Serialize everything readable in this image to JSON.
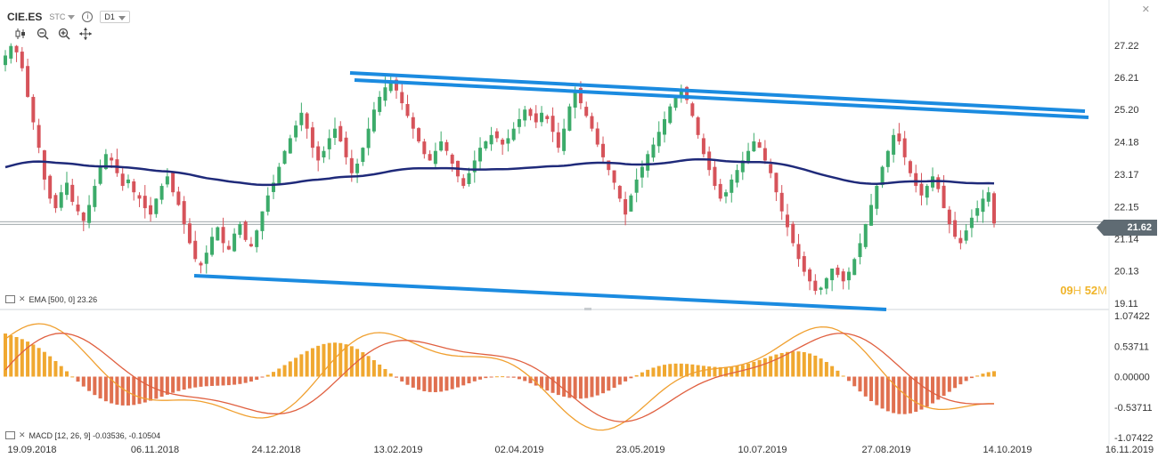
{
  "header": {
    "symbol": "CIE.ES",
    "source": "STC",
    "info_icon": "info-icon",
    "timeframe": "D1"
  },
  "toolbar": {
    "icons": [
      "candlestick-type-icon",
      "zoom-out-icon",
      "zoom-in-icon",
      "crosshair-icon"
    ]
  },
  "window": {
    "close_glyph": "✕"
  },
  "ema_label": "EMA [500, 0] 23.26",
  "macd_label": "MACD [12, 26, 9] -0.03536, -0.10504",
  "timer": {
    "hours": "09",
    "h": "H",
    "minutes": "52",
    "m": "M"
  },
  "current_price": "21.62",
  "colors": {
    "up": "#3cab6a",
    "down": "#d6535a",
    "ema": "#1f2a7a",
    "channel": "#1b8be0",
    "hist_up": "#f0a830",
    "hist_down": "#e07050",
    "macd_line": "#f0a030",
    "signal_line": "#e06040",
    "price_tag_bg": "#5f6b73"
  },
  "chart_data": [
    {
      "type": "candlestick",
      "title": "CIE.ES",
      "y_ticks": [
        "27.22",
        "26.21",
        "25.20",
        "24.18",
        "23.17",
        "22.15",
        "21.14",
        "20.13",
        "19.11"
      ],
      "ylim": [
        19.11,
        27.22
      ],
      "x_ticks": [
        "19.09.2018",
        "06.11.2018",
        "24.12.2018",
        "13.02.2019",
        "02.04.2019",
        "23.05.2019",
        "10.07.2019",
        "27.08.2019",
        "14.10.2019",
        "16.11.2019"
      ],
      "last_price": 21.62,
      "ema": {
        "period": 500,
        "value": 23.26
      },
      "candles_close": [
        26.9,
        27.2,
        27.0,
        26.5,
        25.6,
        24.8,
        24.0,
        23.0,
        22.4,
        22.1,
        22.6,
        22.9,
        22.3,
        22.0,
        21.7,
        22.2,
        22.8,
        23.4,
        23.8,
        23.6,
        23.2,
        22.8,
        23.0,
        22.6,
        22.4,
        22.1,
        21.9,
        22.4,
        22.8,
        23.1,
        22.6,
        22.2,
        21.6,
        21.0,
        20.5,
        20.3,
        20.7,
        21.2,
        21.5,
        21.0,
        20.8,
        21.3,
        21.6,
        21.1,
        20.9,
        21.4,
        22.0,
        22.5,
        22.9,
        23.4,
        23.9,
        24.3,
        24.7,
        25.1,
        24.6,
        24.0,
        23.6,
        23.9,
        24.3,
        24.6,
        24.2,
        23.7,
        23.2,
        23.5,
        24.0,
        24.6,
        25.2,
        25.6,
        25.9,
        26.1,
        25.8,
        25.4,
        25.0,
        24.6,
        24.2,
        23.8,
        23.6,
        23.9,
        24.2,
        23.9,
        23.5,
        23.1,
        22.8,
        23.2,
        23.6,
        24.0,
        24.2,
        24.4,
        24.3,
        24.1,
        24.3,
        24.6,
        24.9,
        25.2,
        25.0,
        24.8,
        25.1,
        24.9,
        24.5,
        24.0,
        24.6,
        25.3,
        25.8,
        25.4,
        25.0,
        24.6,
        24.1,
        23.7,
        23.3,
        22.9,
        22.4,
        21.9,
        22.5,
        23.0,
        23.4,
        23.8,
        24.1,
        24.5,
        24.9,
        25.3,
        25.6,
        25.8,
        25.5,
        25.0,
        24.4,
        23.8,
        23.3,
        22.8,
        22.4,
        22.6,
        23.0,
        23.3,
        23.6,
        23.9,
        24.2,
        24.0,
        23.6,
        23.2,
        22.6,
        22.0,
        21.5,
        21.0,
        20.5,
        20.1,
        19.8,
        19.5,
        19.6,
        19.9,
        20.2,
        20.0,
        19.8,
        20.1,
        20.5,
        21.0,
        21.6,
        22.2,
        22.8,
        23.4,
        23.9,
        24.4,
        24.2,
        23.7,
        23.2,
        22.8,
        22.5,
        22.8,
        23.1,
        22.7,
        22.1,
        21.6,
        21.2,
        21.0,
        21.4,
        21.8,
        22.1,
        22.4,
        22.6,
        21.62
      ],
      "channel_upper": [
        [
          26.3,
          25.2
        ]
      ],
      "channel_lower": [
        [
          20.2,
          19.0
        ]
      ]
    },
    {
      "type": "bar",
      "title": "MACD",
      "label": "MACD [12, 26, 9] -0.03536, -0.10504",
      "y_ticks": [
        "1.07422",
        "0.53711",
        "0.00000",
        "-0.53711",
        "-1.07422"
      ],
      "ylim": [
        -1.07422,
        1.07422
      ],
      "macd": -0.03536,
      "signal": -0.10504
    }
  ]
}
